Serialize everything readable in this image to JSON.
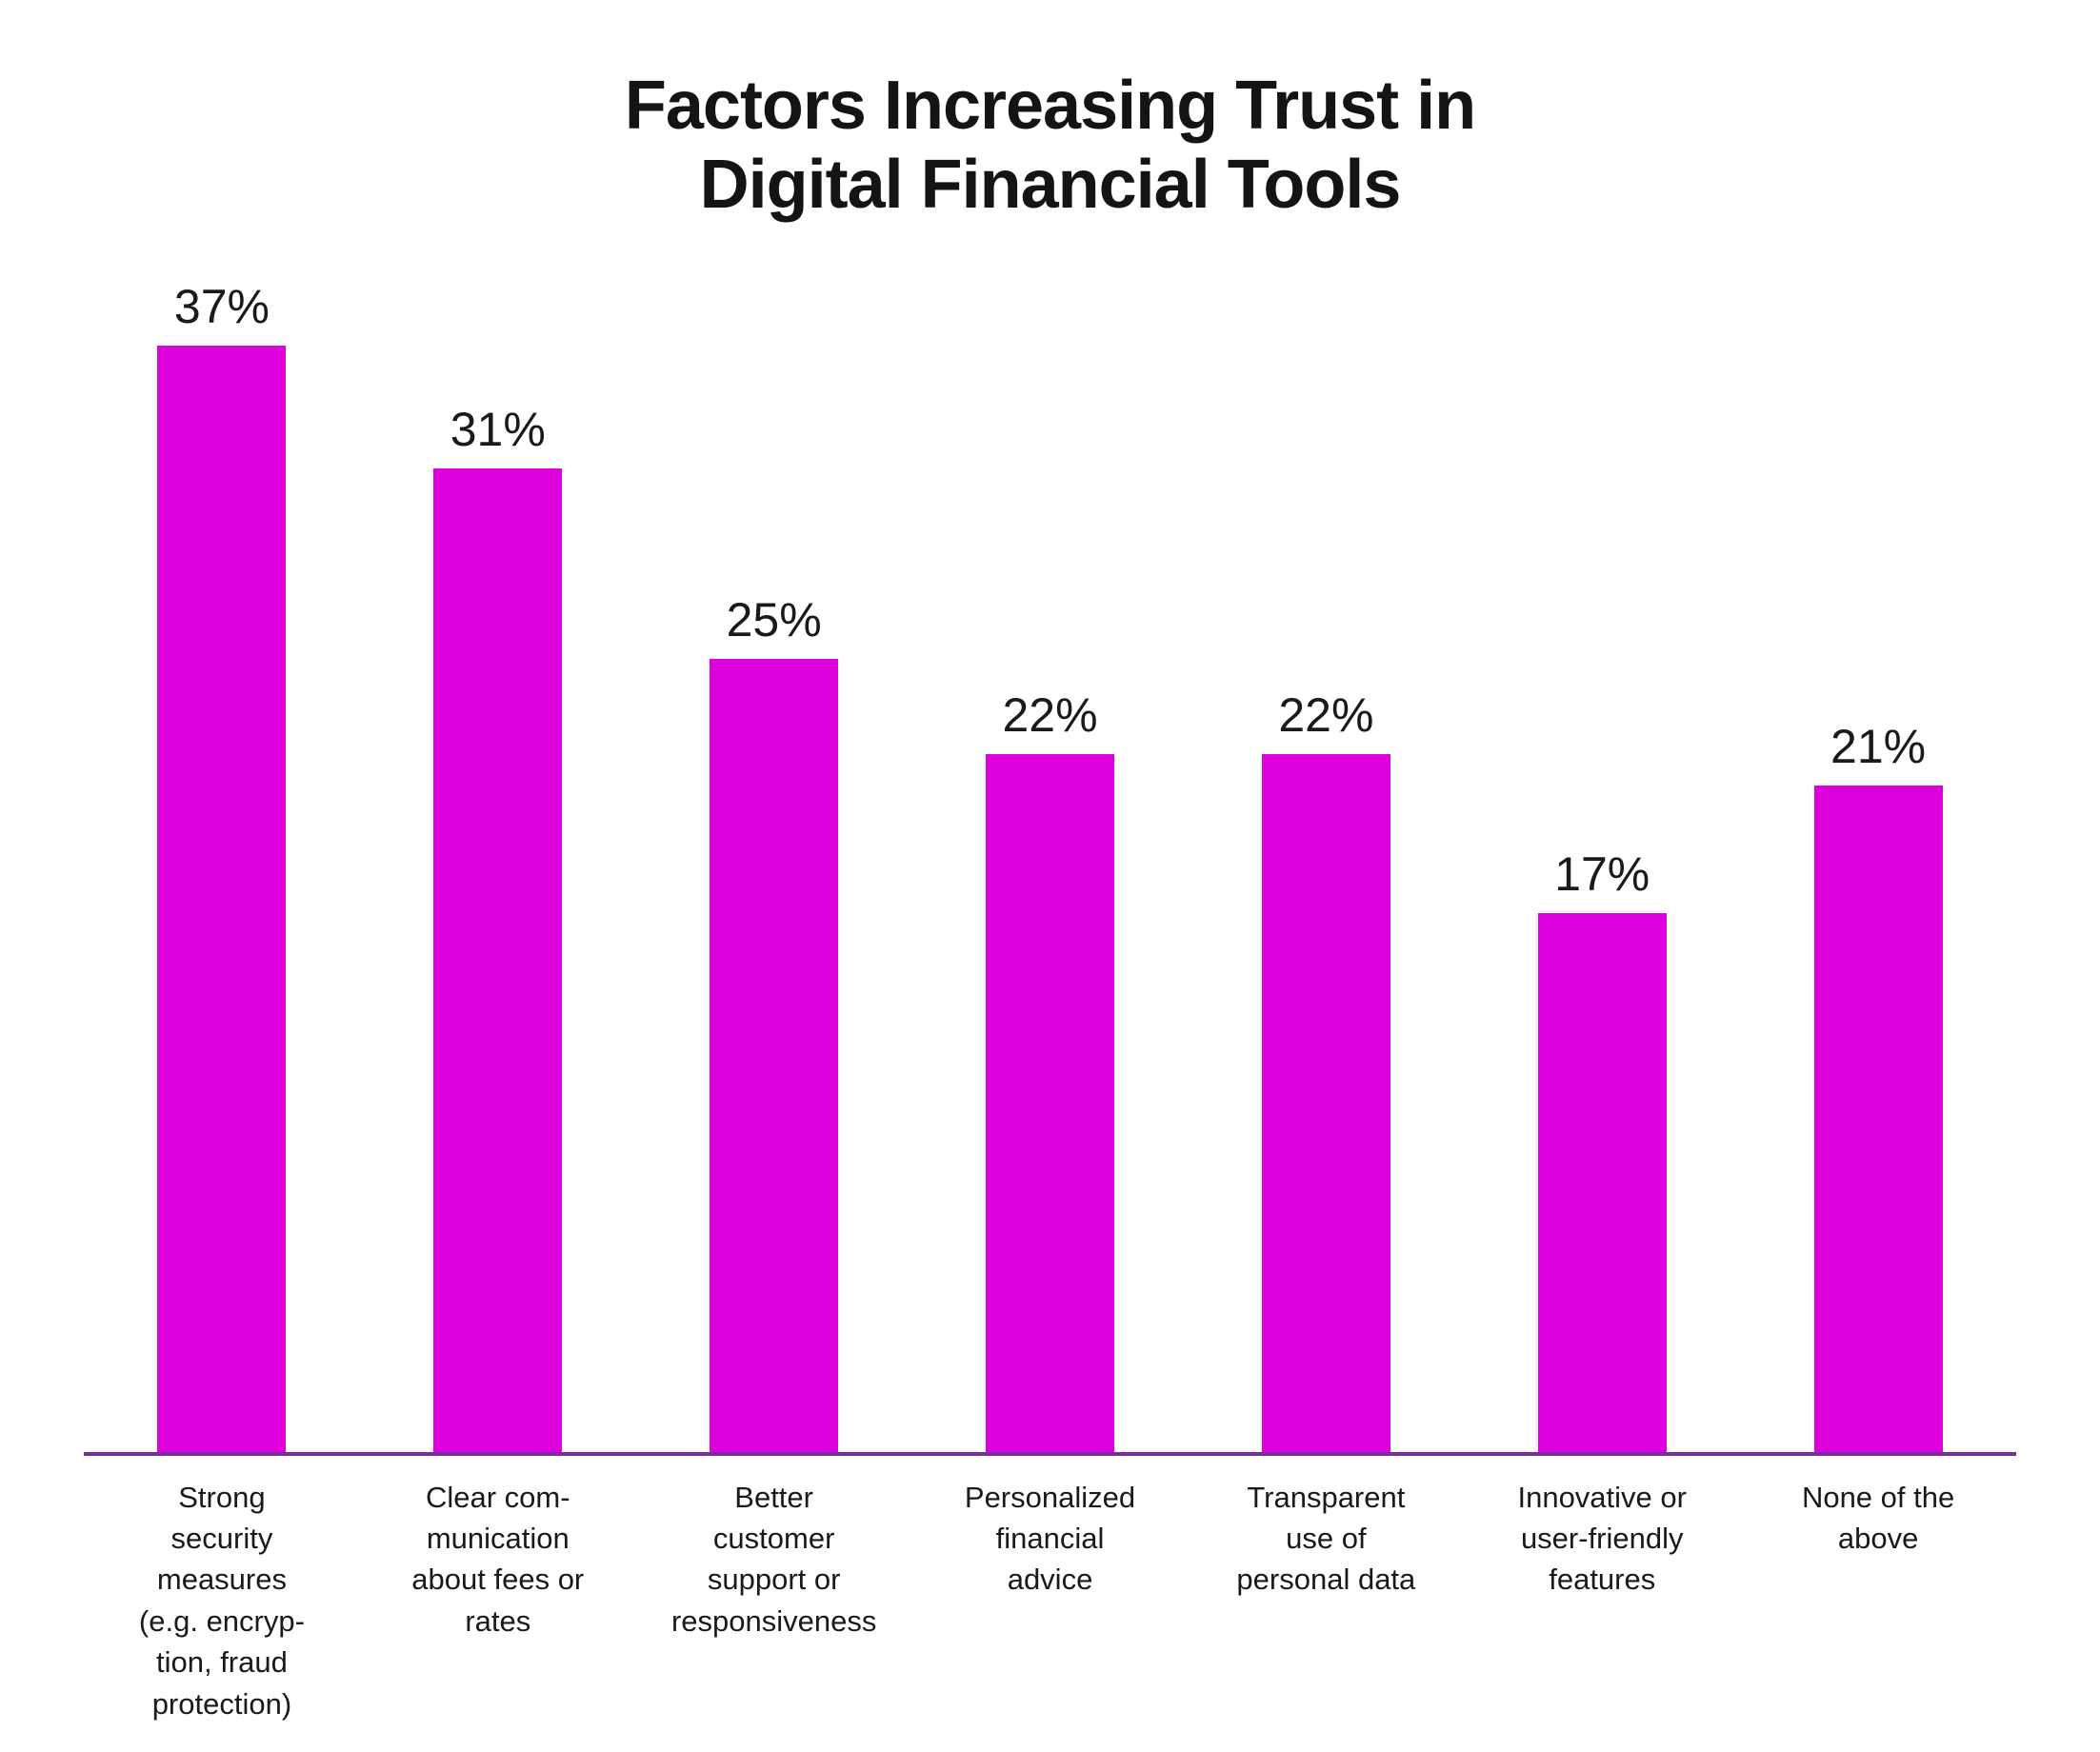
{
  "chart_data": {
    "type": "bar",
    "title": "Factors Increasing Trust in Digital Financial Tools",
    "title_display": "Factors Increasing Trust in\nDigital Financial Tools",
    "categories": [
      "Strong security measures (e.g. encryption, fraud protection)",
      "Clear communication about fees or rates",
      "Better customer support or responsiveness",
      "Personalized financial advice",
      "Transparent use of personal data",
      "Innovative or user-friendly features",
      "None of the above"
    ],
    "categories_display": [
      "Strong\nsecurity\nmeasures\n(e.g. encryp-\ntion, fraud\nprotection)",
      "Clear com-\nmunication\nabout fees or\nrates",
      "Better\ncustomer\nsupport or\nresponsiveness",
      "Personalized\nfinancial\nadvice",
      "Transparent\nuse of\npersonal data",
      "Innovative or\nuser-friendly\nfeatures",
      "None of the\nabove"
    ],
    "values": [
      37,
      31,
      25,
      22,
      22,
      17,
      21
    ],
    "value_labels": [
      "37%",
      "31%",
      "25%",
      "22%",
      "22%",
      "17%",
      "21%"
    ],
    "xlabel": "",
    "ylabel": "",
    "ylim": [
      0,
      37
    ],
    "grid": false,
    "legend": false,
    "bar_color": "#DD00DD",
    "axis_line_color": "#7A2E9E",
    "value_label_color": "#1a1a1a",
    "category_label_color": "#1a1a1a"
  }
}
